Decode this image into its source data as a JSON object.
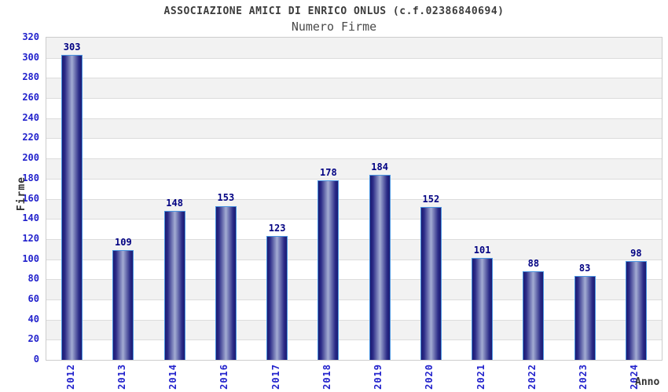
{
  "header": {
    "title": "ASSOCIAZIONE AMICI DI ENRICO ONLUS (c.f.02386840694)",
    "subtitle": "Numero Firme"
  },
  "axes": {
    "y_title": "Firme",
    "x_title": "Anno"
  },
  "colors": {
    "tick_label": "#2222cc",
    "value_label": "#000082",
    "bar_dark": "#1b1b72",
    "bar_light": "#a3acd3",
    "bar_border": "#4893e0",
    "band_gray": "#f2f2f2",
    "band_white": "#ffffff",
    "gridline": "#dcdcdc",
    "plot_border": "#cccccc",
    "title_text": "#3c3c3c"
  },
  "chart_data": {
    "type": "bar",
    "title": "ASSOCIAZIONE AMICI DI ENRICO ONLUS (c.f.02386840694)",
    "subtitle": "Numero Firme",
    "categories": [
      "2012",
      "2013",
      "2014",
      "2016",
      "2017",
      "2018",
      "2019",
      "2020",
      "2021",
      "2022",
      "2023",
      "2024"
    ],
    "values": [
      303,
      109,
      148,
      153,
      123,
      178,
      184,
      152,
      101,
      88,
      83,
      98
    ],
    "xlabel": "Anno",
    "ylabel": "Firme",
    "ylim": [
      0,
      320
    ],
    "ytick_step": 20,
    "grid": true,
    "band_alternation": true,
    "legend": false,
    "bar_value_labels": true
  }
}
